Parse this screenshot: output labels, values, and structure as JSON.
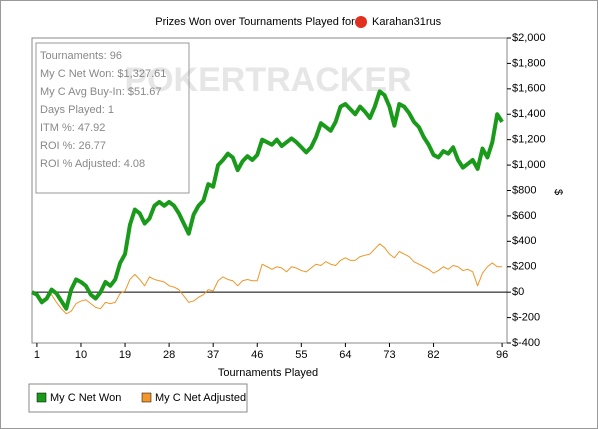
{
  "chart_data": {
    "type": "line",
    "title": "Prizes Won over Tournaments Played for",
    "player": "Karahan31rus",
    "watermark": "POKERTRACKER",
    "stats": [
      "Tournaments: 96",
      "My C Net Won: $1,327.61",
      "My C Avg Buy-In: $51.67",
      "Days Played: 1",
      "ITM %: 47.92",
      "ROI %: 26.77",
      "ROI % Adjusted: 4.08"
    ],
    "xlabel": "Tournaments Played",
    "ylabel": "$",
    "x": [
      0,
      1,
      2,
      3,
      4,
      5,
      6,
      7,
      8,
      9,
      10,
      11,
      12,
      13,
      14,
      15,
      16,
      17,
      18,
      19,
      20,
      21,
      22,
      23,
      24,
      25,
      26,
      27,
      28,
      29,
      30,
      31,
      32,
      33,
      34,
      35,
      36,
      37,
      38,
      39,
      40,
      41,
      42,
      43,
      44,
      45,
      46,
      47,
      48,
      49,
      50,
      51,
      52,
      53,
      54,
      55,
      56,
      57,
      58,
      59,
      60,
      61,
      62,
      63,
      64,
      65,
      66,
      67,
      68,
      69,
      70,
      71,
      72,
      73,
      74,
      75,
      76,
      77,
      78,
      79,
      80,
      81,
      82,
      83,
      84,
      85,
      86,
      87,
      88,
      89,
      90,
      91,
      92,
      93,
      94,
      95,
      96
    ],
    "series": [
      {
        "name": "My C Net Won",
        "color": "#1a9a1a",
        "width": 4,
        "values": [
          0,
          -20,
          -80,
          -50,
          20,
          -10,
          -70,
          -130,
          20,
          100,
          80,
          50,
          -20,
          -50,
          0,
          80,
          50,
          100,
          230,
          300,
          530,
          650,
          620,
          540,
          580,
          680,
          710,
          680,
          710,
          680,
          620,
          540,
          460,
          610,
          680,
          720,
          850,
          830,
          1000,
          1040,
          1090,
          1060,
          960,
          1030,
          1070,
          1040,
          1080,
          1200,
          1180,
          1160,
          1200,
          1150,
          1180,
          1210,
          1180,
          1140,
          1100,
          1140,
          1220,
          1330,
          1300,
          1270,
          1340,
          1460,
          1480,
          1440,
          1400,
          1460,
          1420,
          1370,
          1460,
          1580,
          1550,
          1460,
          1310,
          1480,
          1460,
          1410,
          1340,
          1300,
          1220,
          1160,
          1080,
          1060,
          1110,
          1090,
          1140,
          1040,
          980,
          1010,
          1040,
          970,
          1130,
          1060,
          1180,
          1400,
          1340
        ]
      },
      {
        "name": "My C Net Adjusted",
        "color": "#f0962a",
        "width": 1,
        "values": [
          0,
          -20,
          -60,
          -40,
          -20,
          -80,
          -130,
          -170,
          -150,
          -90,
          -70,
          -60,
          -90,
          -120,
          -130,
          -80,
          -90,
          -80,
          -10,
          10,
          100,
          140,
          100,
          50,
          120,
          100,
          90,
          80,
          50,
          40,
          20,
          -30,
          -80,
          -70,
          -40,
          -20,
          20,
          10,
          90,
          120,
          100,
          90,
          50,
          90,
          100,
          90,
          90,
          220,
          200,
          180,
          200,
          190,
          160,
          200,
          190,
          170,
          160,
          190,
          220,
          210,
          240,
          220,
          210,
          250,
          270,
          250,
          250,
          280,
          290,
          300,
          340,
          380,
          350,
          300,
          270,
          320,
          300,
          280,
          240,
          220,
          200,
          180,
          150,
          170,
          200,
          180,
          210,
          200,
          170,
          180,
          160,
          50,
          150,
          200,
          230,
          200,
          200
        ]
      }
    ],
    "xlim": [
      0,
      97
    ],
    "xticks": [
      1,
      10,
      19,
      28,
      37,
      46,
      55,
      64,
      73,
      82,
      96
    ],
    "ylim": [
      -400,
      2000
    ],
    "yticks": [
      {
        "value": -400,
        "label": "$-400"
      },
      {
        "value": -200,
        "label": "$-200"
      },
      {
        "value": 0,
        "label": "$0"
      },
      {
        "value": 200,
        "label": "$200"
      },
      {
        "value": 400,
        "label": "$400"
      },
      {
        "value": 600,
        "label": "$600"
      },
      {
        "value": 800,
        "label": "$800"
      },
      {
        "value": 1000,
        "label": "$1,000"
      },
      {
        "value": 1200,
        "label": "$1,200"
      },
      {
        "value": 1400,
        "label": "$1,400"
      },
      {
        "value": 1600,
        "label": "$1,600"
      },
      {
        "value": 1800,
        "label": "$1,800"
      },
      {
        "value": 2000,
        "label": "$2,000"
      }
    ],
    "grid": false,
    "legend": "bottom-left"
  }
}
